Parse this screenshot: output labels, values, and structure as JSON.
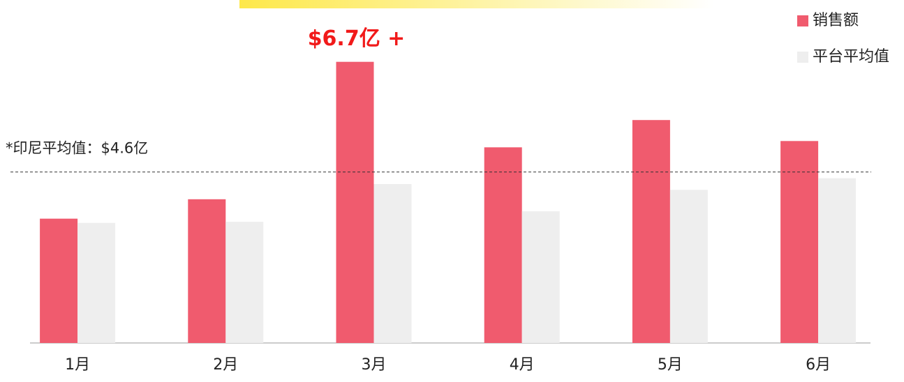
{
  "chart_data": {
    "type": "bar",
    "categories": [
      "1月",
      "2月",
      "3月",
      "4月",
      "5月",
      "6月"
    ],
    "series": [
      {
        "name": "销售额",
        "color": "#f05b6e",
        "values": [
          3.71,
          4.08,
          6.7,
          5.07,
          5.59,
          5.19
        ]
      },
      {
        "name": "平台平均值",
        "color": "#eeeeee",
        "values": [
          3.63,
          3.65,
          4.37,
          3.85,
          4.26,
          4.48
        ]
      }
    ],
    "ylim": [
      1.34,
      7.48
    ],
    "annotation": {
      "text": "$6.7亿 +",
      "series": 0,
      "index": 2
    },
    "reference_line": {
      "value": 4.6,
      "label": "*印尼平均值：$4.6亿"
    },
    "legend": "top-right"
  }
}
